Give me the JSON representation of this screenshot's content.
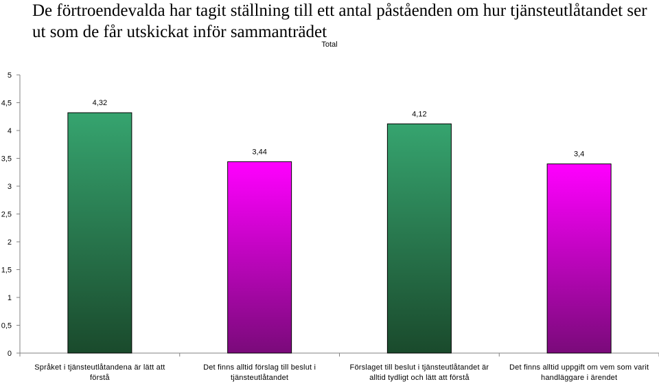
{
  "title": "De förtroendevalda har tagit ställning till ett antal påståenden om hur tjänsteutlåtandet ser ut som de får utskickat inför sammanträdet",
  "subtitle": "Total",
  "colors": {
    "green_top": "#36a46f",
    "green_bottom": "#1a4a2c",
    "magenta_top": "#ff00ff",
    "magenta_bottom": "#7a0a7a",
    "axis": "#808080"
  },
  "chart_data": {
    "type": "bar",
    "title": "De förtroendevalda har tagit ställning till ett antal påståenden om hur tjänsteutlåtandet ser ut som de får utskickat inför sammanträdet",
    "subtitle": "Total",
    "categories": [
      "Språket i tjänsteutlåtandena är lätt att förstå",
      "Det finns alltid förslag till beslut i tjänsteutlåtandet",
      "Förslaget till beslut i tjänsteutlåtandet är alltid tydligt och lätt att förstå",
      "Det finns alltid uppgift om vem som varit handläggare i ärendet"
    ],
    "values": [
      4.32,
      3.44,
      4.12,
      3.4
    ],
    "value_labels": [
      "4,32",
      "3,44",
      "4,12",
      "3,4"
    ],
    "bar_colors": [
      "green",
      "magenta",
      "green",
      "magenta"
    ],
    "ylim": [
      0,
      5
    ],
    "yticks": [
      0,
      0.5,
      1,
      1.5,
      2,
      2.5,
      3,
      3.5,
      4,
      4.5,
      5
    ],
    "ytick_labels": [
      "0",
      "0,5",
      "1",
      "1,5",
      "2",
      "2,5",
      "3",
      "3,5",
      "4",
      "4,5",
      "5"
    ],
    "xlabel": "",
    "ylabel": "",
    "grid": false,
    "legend": "none"
  }
}
